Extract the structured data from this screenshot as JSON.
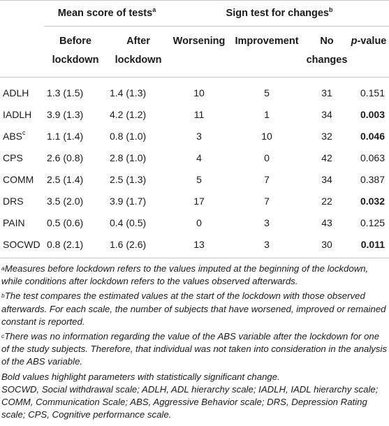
{
  "headers": {
    "group_mean": "Mean score of tests",
    "group_mean_sup": "a",
    "group_sign": "Sign test for changes",
    "group_sign_sup": "b",
    "before_1": "Before",
    "before_2": "lockdown",
    "after_1": "After",
    "after_2": "lockdown",
    "worsening": "Worsening",
    "improvement": "Improvement",
    "nochange_1": "No",
    "nochange_2": "changes",
    "pvalue_p": "p",
    "pvalue_rest": "-value"
  },
  "rows": [
    {
      "label": "ADLH",
      "sup": "",
      "before": "1.3 (1.5)",
      "after": "1.4 (1.3)",
      "worsening": "10",
      "improvement": "5",
      "no_changes": "31",
      "p": "0.151",
      "bold": false
    },
    {
      "label": "IADLH",
      "sup": "",
      "before": "3.9 (1.3)",
      "after": "4.2 (1.2)",
      "worsening": "11",
      "improvement": "1",
      "no_changes": "34",
      "p": "0.003",
      "bold": true
    },
    {
      "label": "ABS",
      "sup": "c",
      "before": "1.1 (1.4)",
      "after": "0.8 (1.0)",
      "worsening": "3",
      "improvement": "10",
      "no_changes": "32",
      "p": "0.046",
      "bold": true
    },
    {
      "label": "CPS",
      "sup": "",
      "before": "2.6 (0.8)",
      "after": "2.8 (1.0)",
      "worsening": "4",
      "improvement": "0",
      "no_changes": "42",
      "p": "0.063",
      "bold": false
    },
    {
      "label": "COMM",
      "sup": "",
      "before": "2.5 (1.4)",
      "after": "2.5 (1.3)",
      "worsening": "5",
      "improvement": "7",
      "no_changes": "34",
      "p": "0.387",
      "bold": false
    },
    {
      "label": "DRS",
      "sup": "",
      "before": "3.5 (2.0)",
      "after": "3.9 (1.7)",
      "worsening": "17",
      "improvement": "7",
      "no_changes": "22",
      "p": "0.032",
      "bold": true
    },
    {
      "label": "PAIN",
      "sup": "",
      "before": "0.5 (0.6)",
      "after": "0.4 (0.5)",
      "worsening": "0",
      "improvement": "3",
      "no_changes": "43",
      "p": "0.125",
      "bold": false
    },
    {
      "label": "SOCWD",
      "sup": "",
      "before": "0.8 (2.1)",
      "after": "1.6 (2.6)",
      "worsening": "13",
      "improvement": "3",
      "no_changes": "30",
      "p": "0.011",
      "bold": true
    }
  ],
  "notes": {
    "a_sup": "a",
    "a_text": "Measures before lockdown refers to the values imputed at the beginning of the lockdown, while conditions after lockdown refers to the values observed afterwards.",
    "b_sup": "b",
    "b_text": "The test compares the estimated values at the start of the lockdown with those observed afterwards. For each scale, the number of subjects that have worsened, improved or remained constant is reported.",
    "c_sup": "c",
    "c_text": "There was no information regarding the value of the ABS variable after the lockdown for one of the study subjects. Therefore, that individual was not taken into consideration in the analysis of the ABS variable.",
    "bold_note": "Bold values highlight parameters with statistically significant change.",
    "abbrev": "SOCWD, Social withdrawal scale; ADLH, ADL hierarchy scale; IADLH, IADL hierarchy scale; COMM, Communication Scale; ABS, Aggressive Behavior scale; DRS, Depression Rating scale; CPS, Cognitive performance scale."
  }
}
